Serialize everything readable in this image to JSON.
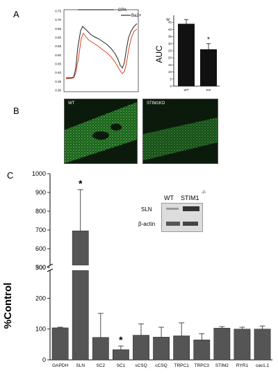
{
  "panels": {
    "A": {
      "letter": "A",
      "trace": {
        "legend": [
          "CPA",
          "Ba2+"
        ],
        "y_tick_labels": [
          "0.75",
          "0.70",
          "0.65",
          "0.60",
          "0.55",
          "0.50",
          "0.45",
          "0.40",
          "0.35",
          "0.30"
        ]
      },
      "auc": {
        "type": "bar",
        "ylabel": "AUC",
        "corner_label": "W",
        "ylim": [
          0,
          50
        ],
        "yticks": [
          0,
          5,
          10,
          15,
          20,
          25,
          30,
          35,
          40,
          45
        ],
        "categories": [
          "WT",
          "KO"
        ],
        "values": [
          44,
          26
        ],
        "errors": [
          3,
          4
        ],
        "sig": [
          "",
          "*"
        ]
      }
    },
    "B": {
      "letter": "B",
      "images": [
        "WT",
        "STIM1KO"
      ]
    },
    "C": {
      "letter": "C",
      "ylabel": "%Control",
      "blot": {
        "lanes": [
          "WT",
          "STIM1"
        ],
        "superscript": "-/-",
        "rows": [
          "SLN",
          "β-actin"
        ]
      }
    }
  },
  "chart_data": {
    "type": "bar",
    "ylabel": "%Control",
    "axis_break": [
      300,
      500
    ],
    "yticks": [
      0,
      100,
      200,
      300,
      500,
      600,
      700,
      800,
      900,
      1000
    ],
    "categories": [
      "GAPDH",
      "SLN",
      "SC2",
      "SC1",
      "sCSQ",
      "cCSQ",
      "TRPC1",
      "TRPC3",
      "STIM2",
      "RYR1",
      "cav1.1"
    ],
    "values": [
      104,
      695,
      73,
      33,
      80,
      74,
      78,
      65,
      103,
      100,
      100
    ],
    "errors": [
      2,
      220,
      78,
      12,
      37,
      32,
      42,
      20,
      5,
      6,
      10
    ],
    "significance": [
      "",
      "*",
      "",
      "*",
      "",
      "",
      "",
      "",
      "",
      "",
      ""
    ]
  }
}
